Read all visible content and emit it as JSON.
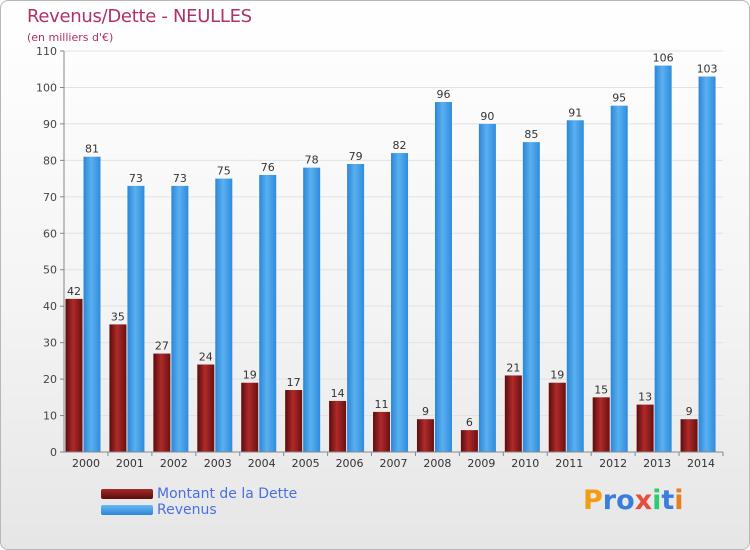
{
  "title": "Revenus/Dette - NEULLES",
  "subtitle": "(en milliers d'€)",
  "chart_data": {
    "type": "bar",
    "categories": [
      "2000",
      "2001",
      "2002",
      "2003",
      "2004",
      "2005",
      "2006",
      "2007",
      "2008",
      "2009",
      "2010",
      "2011",
      "2012",
      "2013",
      "2014"
    ],
    "series": [
      {
        "name": "Montant de la Dette",
        "color": "#8b1a1a",
        "values": [
          42,
          35,
          27,
          24,
          19,
          17,
          14,
          11,
          9,
          6,
          21,
          19,
          15,
          13,
          9
        ]
      },
      {
        "name": "Revenus",
        "color": "#3a9ae6",
        "values": [
          81,
          73,
          73,
          75,
          76,
          78,
          79,
          82,
          96,
          90,
          85,
          91,
          95,
          106,
          103
        ]
      }
    ],
    "ylim": [
      0,
      110
    ],
    "yticks": [
      0,
      10,
      20,
      30,
      40,
      50,
      60,
      70,
      80,
      90,
      100,
      110
    ],
    "grid": true,
    "legend_position": "bottom-left"
  },
  "legend": {
    "debt_label": "Montant de la Dette",
    "revenue_label": "Revenus"
  },
  "logo": {
    "letters": [
      "P",
      "r",
      "o",
      "x",
      "i",
      "t",
      "i"
    ],
    "colors": [
      "#f39c12",
      "#3b7ddd",
      "#3b7ddd",
      "#e74c3c",
      "#2ecc71",
      "#3b7ddd",
      "#e67e22"
    ]
  }
}
